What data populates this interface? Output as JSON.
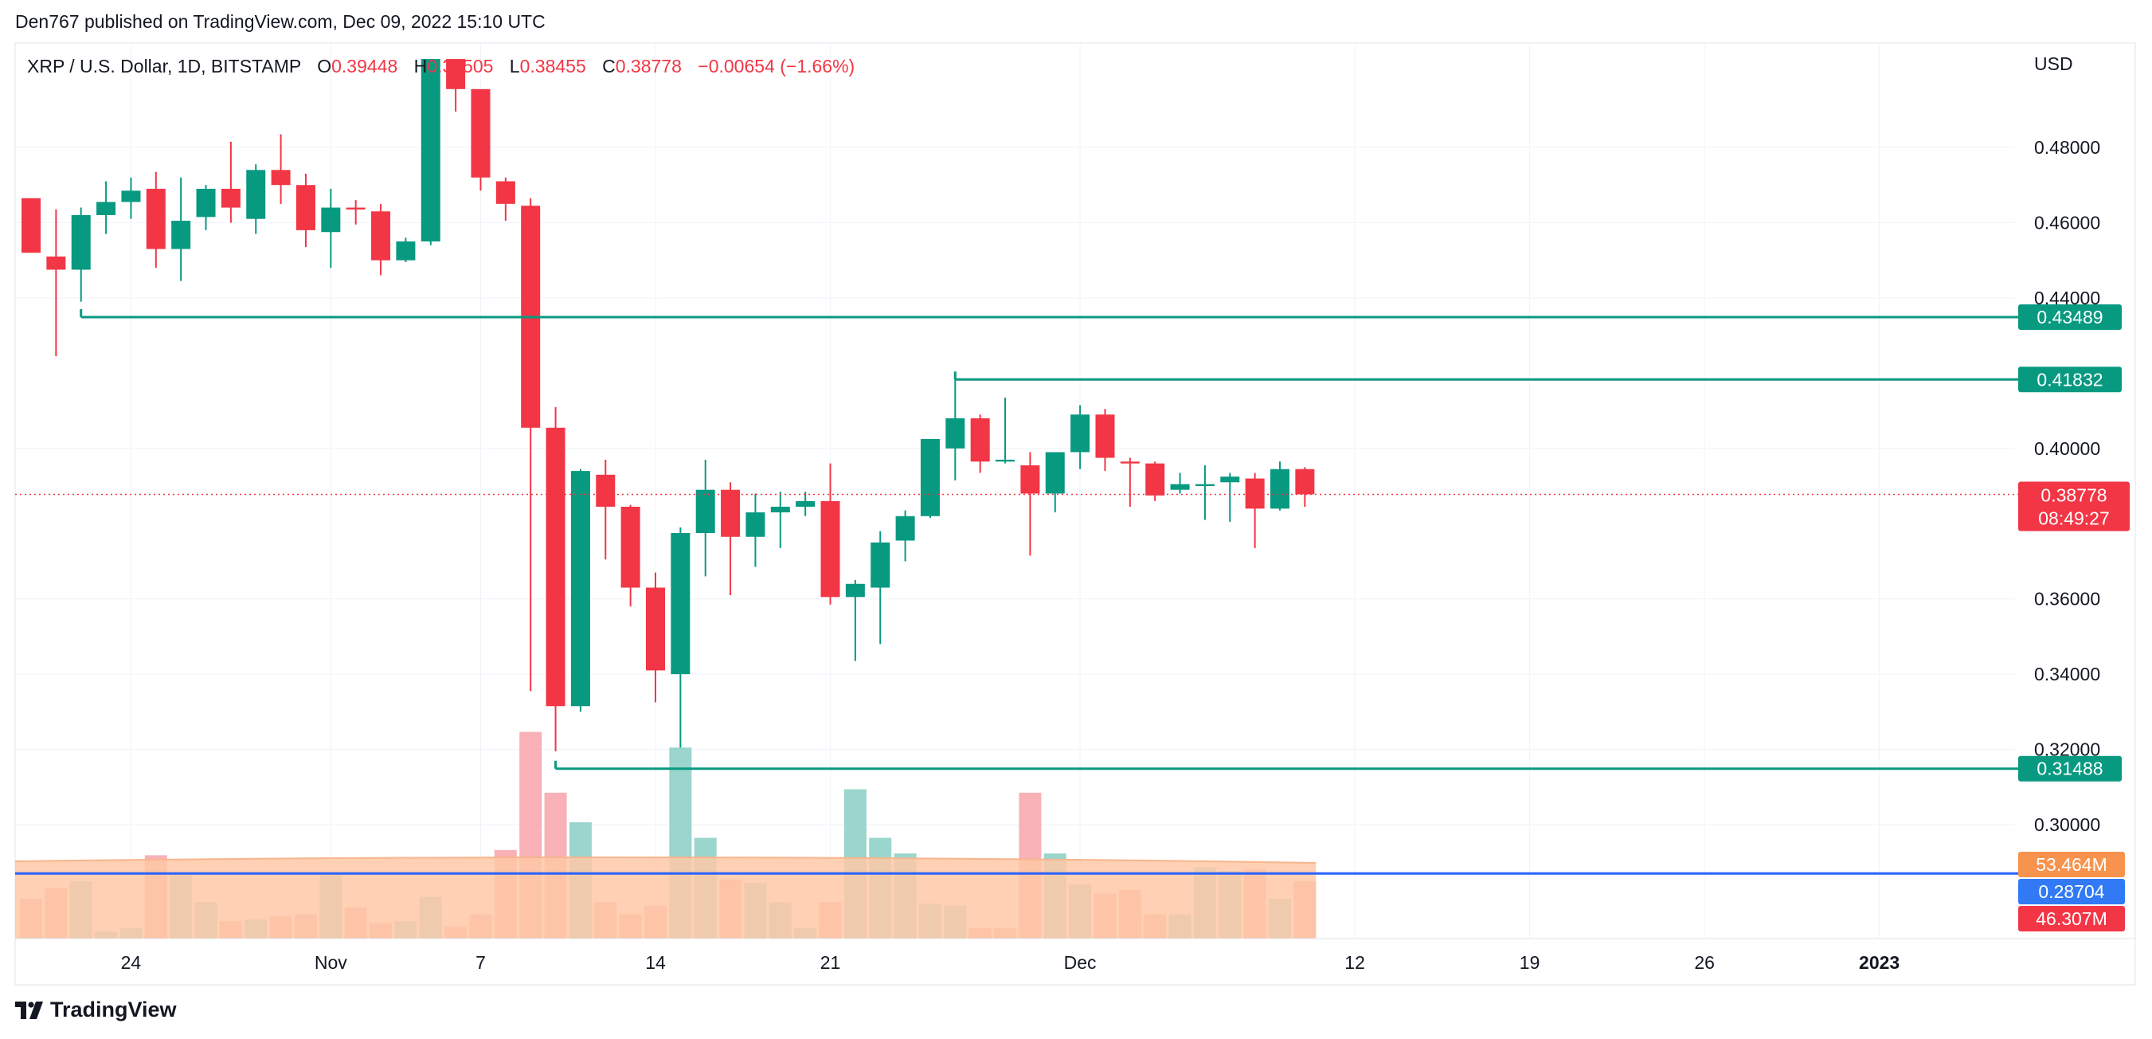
{
  "header": {
    "publisher_line": "Den767 published on TradingView.com, Dec 09, 2022 15:10 UTC"
  },
  "legend": {
    "symbol": "XRP / U.S. Dollar, 1D, BITSTAMP",
    "o_label": "O",
    "o_value": "0.39448",
    "h_label": "H",
    "h_value": "0.39505",
    "l_label": "L",
    "l_value": "0.38455",
    "c_label": "C",
    "c_value": "0.38778",
    "change": "−0.00654 (−1.66%)"
  },
  "brand": {
    "name": "TradingView",
    "logo_icon": "tradingview-logo-icon"
  },
  "colors": {
    "up": "#089981",
    "down": "#f23645",
    "up_volume": "#8fd1c8",
    "down_volume": "#f7a9ae",
    "level_line": "#089981",
    "current_price": "#f23645",
    "volume_ma_line": "#2962ff",
    "volume_ma_fill": "#ffc8a6",
    "grid": "#f0f3fa",
    "axis_text": "#131722"
  },
  "chart_data": {
    "type": "candlestick",
    "currency": "USD",
    "timeframe": "1D",
    "y_ticks": [
      "0.48000",
      "0.46000",
      "0.44000",
      "0.40000",
      "0.36000",
      "0.34000",
      "0.32000",
      "0.30000"
    ],
    "x_ticks": [
      {
        "label": "24",
        "index": 4
      },
      {
        "label": "Nov",
        "index": 12
      },
      {
        "label": "7",
        "index": 18
      },
      {
        "label": "14",
        "index": 25
      },
      {
        "label": "21",
        "index": 32
      },
      {
        "label": "Dec",
        "index": 42
      },
      {
        "label": "12",
        "index": 53
      },
      {
        "label": "19",
        "index": 60
      },
      {
        "label": "26",
        "index": 67
      },
      {
        "label": "2023",
        "index": 74
      }
    ],
    "bold_x_labels": [
      "2023"
    ],
    "candles": [
      {
        "o": 0.4665,
        "h": 0.4665,
        "l": 0.452,
        "c": 0.452
      },
      {
        "o": 0.451,
        "h": 0.4635,
        "l": 0.4245,
        "c": 0.4475
      },
      {
        "o": 0.4475,
        "h": 0.464,
        "l": 0.439,
        "c": 0.462
      },
      {
        "o": 0.462,
        "h": 0.471,
        "l": 0.457,
        "c": 0.4655
      },
      {
        "o": 0.4655,
        "h": 0.472,
        "l": 0.461,
        "c": 0.4685
      },
      {
        "o": 0.469,
        "h": 0.4735,
        "l": 0.448,
        "c": 0.453
      },
      {
        "o": 0.453,
        "h": 0.472,
        "l": 0.4445,
        "c": 0.4605
      },
      {
        "o": 0.4615,
        "h": 0.47,
        "l": 0.458,
        "c": 0.469
      },
      {
        "o": 0.469,
        "h": 0.4815,
        "l": 0.46,
        "c": 0.464
      },
      {
        "o": 0.461,
        "h": 0.4755,
        "l": 0.457,
        "c": 0.474
      },
      {
        "o": 0.474,
        "h": 0.4835,
        "l": 0.465,
        "c": 0.47
      },
      {
        "o": 0.47,
        "h": 0.473,
        "l": 0.4535,
        "c": 0.458
      },
      {
        "o": 0.4575,
        "h": 0.469,
        "l": 0.448,
        "c": 0.464
      },
      {
        "o": 0.464,
        "h": 0.466,
        "l": 0.4595,
        "c": 0.4635
      },
      {
        "o": 0.463,
        "h": 0.465,
        "l": 0.446,
        "c": 0.45
      },
      {
        "o": 0.45,
        "h": 0.456,
        "l": 0.4495,
        "c": 0.455
      },
      {
        "o": 0.455,
        "h": 0.5035,
        "l": 0.454,
        "c": 0.5035
      },
      {
        "o": 0.5035,
        "h": 0.5035,
        "l": 0.4895,
        "c": 0.4955
      },
      {
        "o": 0.4955,
        "h": 0.494,
        "l": 0.4685,
        "c": 0.472
      },
      {
        "o": 0.471,
        "h": 0.472,
        "l": 0.4605,
        "c": 0.465
      },
      {
        "o": 0.4645,
        "h": 0.4665,
        "l": 0.3355,
        "c": 0.4055
      },
      {
        "o": 0.4055,
        "h": 0.411,
        "l": 0.3195,
        "c": 0.3315
      },
      {
        "o": 0.3315,
        "h": 0.3945,
        "l": 0.33,
        "c": 0.394
      },
      {
        "o": 0.393,
        "h": 0.397,
        "l": 0.3705,
        "c": 0.3845
      },
      {
        "o": 0.3845,
        "h": 0.385,
        "l": 0.358,
        "c": 0.363
      },
      {
        "o": 0.363,
        "h": 0.367,
        "l": 0.3325,
        "c": 0.341
      },
      {
        "o": 0.34,
        "h": 0.379,
        "l": 0.3205,
        "c": 0.3775
      },
      {
        "o": 0.3775,
        "h": 0.397,
        "l": 0.366,
        "c": 0.389
      },
      {
        "o": 0.389,
        "h": 0.391,
        "l": 0.361,
        "c": 0.3765
      },
      {
        "o": 0.3765,
        "h": 0.388,
        "l": 0.3685,
        "c": 0.383
      },
      {
        "o": 0.383,
        "h": 0.3885,
        "l": 0.3735,
        "c": 0.3845
      },
      {
        "o": 0.3845,
        "h": 0.3885,
        "l": 0.382,
        "c": 0.386
      },
      {
        "o": 0.386,
        "h": 0.396,
        "l": 0.3585,
        "c": 0.3605
      },
      {
        "o": 0.3605,
        "h": 0.365,
        "l": 0.3435,
        "c": 0.364
      },
      {
        "o": 0.363,
        "h": 0.378,
        "l": 0.348,
        "c": 0.375
      },
      {
        "o": 0.3755,
        "h": 0.3835,
        "l": 0.37,
        "c": 0.382
      },
      {
        "o": 0.382,
        "h": 0.4025,
        "l": 0.3815,
        "c": 0.4025
      },
      {
        "o": 0.4,
        "h": 0.4185,
        "l": 0.3915,
        "c": 0.408
      },
      {
        "o": 0.408,
        "h": 0.409,
        "l": 0.3935,
        "c": 0.3965
      },
      {
        "o": 0.3965,
        "h": 0.4135,
        "l": 0.396,
        "c": 0.397
      },
      {
        "o": 0.3955,
        "h": 0.399,
        "l": 0.3715,
        "c": 0.388
      },
      {
        "o": 0.388,
        "h": 0.399,
        "l": 0.383,
        "c": 0.399
      },
      {
        "o": 0.399,
        "h": 0.4115,
        "l": 0.3945,
        "c": 0.409
      },
      {
        "o": 0.409,
        "h": 0.4105,
        "l": 0.394,
        "c": 0.3975
      },
      {
        "o": 0.3965,
        "h": 0.3975,
        "l": 0.3845,
        "c": 0.396
      },
      {
        "o": 0.396,
        "h": 0.3965,
        "l": 0.386,
        "c": 0.3875
      },
      {
        "o": 0.389,
        "h": 0.3935,
        "l": 0.388,
        "c": 0.3905
      },
      {
        "o": 0.39,
        "h": 0.3955,
        "l": 0.381,
        "c": 0.3905
      },
      {
        "o": 0.391,
        "h": 0.3935,
        "l": 0.3805,
        "c": 0.3925
      },
      {
        "o": 0.392,
        "h": 0.3935,
        "l": 0.3735,
        "c": 0.384
      },
      {
        "o": 0.384,
        "h": 0.3965,
        "l": 0.3835,
        "c": 0.3945
      },
      {
        "o": 0.3945,
        "h": 0.395,
        "l": 0.3845,
        "c": 0.3878
      }
    ],
    "volumes": [
      {
        "v": 23,
        "up": false
      },
      {
        "v": 29,
        "up": false
      },
      {
        "v": 33,
        "up": true
      },
      {
        "v": 4,
        "up": true
      },
      {
        "v": 6,
        "up": true
      },
      {
        "v": 48,
        "up": false
      },
      {
        "v": 37,
        "up": true
      },
      {
        "v": 21,
        "up": true
      },
      {
        "v": 10,
        "up": false
      },
      {
        "v": 11,
        "up": true
      },
      {
        "v": 13,
        "up": false
      },
      {
        "v": 14,
        "up": false
      },
      {
        "v": 38,
        "up": true
      },
      {
        "v": 18,
        "up": false
      },
      {
        "v": 9,
        "up": false
      },
      {
        "v": 10,
        "up": true
      },
      {
        "v": 24,
        "up": true
      },
      {
        "v": 7,
        "up": false
      },
      {
        "v": 14,
        "up": false
      },
      {
        "v": 51,
        "up": false
      },
      {
        "v": 119,
        "up": false
      },
      {
        "v": 84,
        "up": false
      },
      {
        "v": 67,
        "up": true
      },
      {
        "v": 21,
        "up": false
      },
      {
        "v": 14,
        "up": false
      },
      {
        "v": 19,
        "up": false
      },
      {
        "v": 110,
        "up": true
      },
      {
        "v": 58,
        "up": true
      },
      {
        "v": 34,
        "up": false
      },
      {
        "v": 32,
        "up": true
      },
      {
        "v": 21,
        "up": true
      },
      {
        "v": 6,
        "up": true
      },
      {
        "v": 21,
        "up": false
      },
      {
        "v": 86,
        "up": true
      },
      {
        "v": 58,
        "up": true
      },
      {
        "v": 49,
        "up": true
      },
      {
        "v": 20,
        "up": true
      },
      {
        "v": 19,
        "up": true
      },
      {
        "v": 6,
        "up": false
      },
      {
        "v": 6,
        "up": false
      },
      {
        "v": 84,
        "up": false
      },
      {
        "v": 49,
        "up": true
      },
      {
        "v": 31,
        "up": true
      },
      {
        "v": 26,
        "up": false
      },
      {
        "v": 28,
        "up": false
      },
      {
        "v": 14,
        "up": false
      },
      {
        "v": 14,
        "up": true
      },
      {
        "v": 41,
        "up": true
      },
      {
        "v": 39,
        "up": true
      },
      {
        "v": 40,
        "up": false
      },
      {
        "v": 23,
        "up": true
      },
      {
        "v": 33,
        "up": false
      }
    ],
    "levels": [
      {
        "price": 0.43489,
        "label": "0.43489",
        "start_index": 2
      },
      {
        "price": 0.41832,
        "label": "0.41832",
        "start_index": 37
      },
      {
        "price": 0.31488,
        "label": "0.31488",
        "start_index": 21
      }
    ],
    "current_price": {
      "price": 0.38778,
      "label": "0.38778",
      "countdown": "08:49:27"
    },
    "volume_labels": {
      "ma_value": "53.464M",
      "ma_value_price_level": "0.28704",
      "last_volume": "46.307M"
    }
  }
}
